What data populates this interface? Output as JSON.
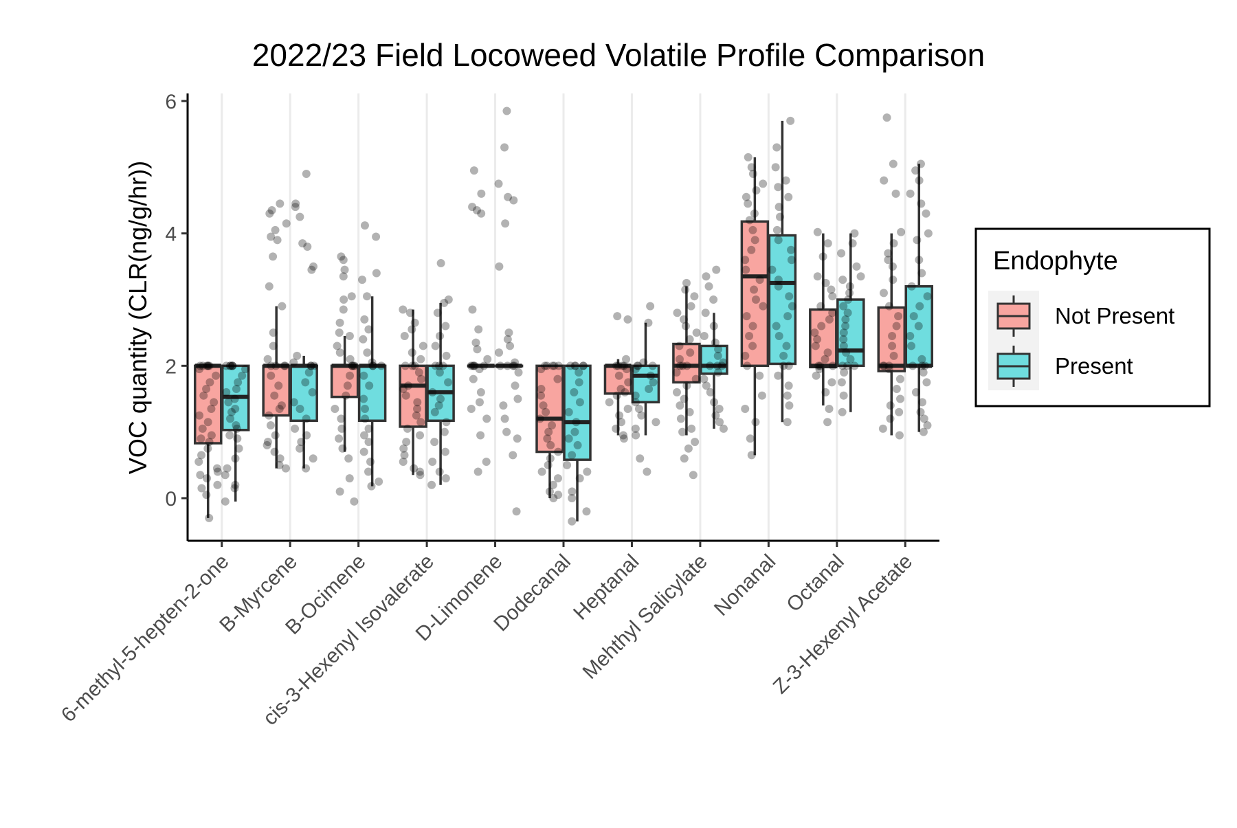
{
  "chart_data": {
    "type": "box",
    "title": "2022/23 Field Locoweed Volatile Profile Comparison",
    "xlabel": "",
    "ylabel": "VOC quantity (CLR(ng/g/hr))",
    "ylim": [
      -0.6,
      6.2
    ],
    "yticks": [
      0,
      2,
      4,
      6
    ],
    "grid": "vertical major lines only",
    "legend": {
      "title": "Endophyte",
      "placement": "right",
      "entries": [
        "Not Present",
        "Present"
      ]
    },
    "colors": {
      "Not Present": "#F8A5A0",
      "Present": "#6FDDDF",
      "points": "#000000",
      "outline": "#333333"
    },
    "categories": [
      "6-methyl-5-hepten-2-one",
      "B-Myrcene",
      "B-Ocimene",
      "cis-3-Hexenyl Isovalerate",
      "D-Limonene",
      "Dodecanal",
      "Heptanal",
      "Mehthyl Salicylate",
      "Nonanal",
      "Octanal",
      "Z-3-Hexenyl Acetate"
    ],
    "series": [
      {
        "name": "Not Present",
        "boxes": [
          {
            "min": -0.3,
            "q1": 0.83,
            "median": 2.0,
            "q3": 2.0,
            "max": 2.0
          },
          {
            "min": 0.45,
            "q1": 1.25,
            "median": 2.0,
            "q3": 2.0,
            "max": 2.9
          },
          {
            "min": 0.7,
            "q1": 1.53,
            "median": 2.0,
            "q3": 2.0,
            "max": 2.45
          },
          {
            "min": 0.35,
            "q1": 1.08,
            "median": 1.7,
            "q3": 2.0,
            "max": 2.85
          },
          {
            "min": 2.0,
            "q1": 2.0,
            "median": 2.0,
            "q3": 2.0,
            "max": 2.0
          },
          {
            "min": 0.0,
            "q1": 0.7,
            "median": 1.2,
            "q3": 2.0,
            "max": 2.0
          },
          {
            "min": 0.95,
            "q1": 1.58,
            "median": 2.0,
            "q3": 2.0,
            "max": 2.1
          },
          {
            "min": 0.95,
            "q1": 1.75,
            "median": 2.0,
            "q3": 2.33,
            "max": 3.2
          },
          {
            "min": 0.65,
            "q1": 2.0,
            "median": 3.35,
            "q3": 4.18,
            "max": 5.15
          },
          {
            "min": 1.4,
            "q1": 1.98,
            "median": 2.0,
            "q3": 2.85,
            "max": 4.0
          },
          {
            "min": 0.95,
            "q1": 1.92,
            "median": 2.0,
            "q3": 2.88,
            "max": 4.0
          }
        ]
      },
      {
        "name": "Present",
        "boxes": [
          {
            "min": -0.05,
            "q1": 1.03,
            "median": 1.53,
            "q3": 2.0,
            "max": 2.0
          },
          {
            "min": 0.45,
            "q1": 1.17,
            "median": 2.0,
            "q3": 2.0,
            "max": 2.15
          },
          {
            "min": 0.18,
            "q1": 1.17,
            "median": 2.0,
            "q3": 2.0,
            "max": 3.05
          },
          {
            "min": 0.2,
            "q1": 1.17,
            "median": 1.6,
            "q3": 2.0,
            "max": 2.95
          },
          {
            "min": 2.0,
            "q1": 2.0,
            "median": 2.0,
            "q3": 2.0,
            "max": 2.0
          },
          {
            "min": -0.35,
            "q1": 0.58,
            "median": 1.15,
            "q3": 2.0,
            "max": 2.0
          },
          {
            "min": 0.95,
            "q1": 1.45,
            "median": 1.85,
            "q3": 2.0,
            "max": 2.65
          },
          {
            "min": 1.05,
            "q1": 1.88,
            "median": 2.0,
            "q3": 2.3,
            "max": 2.8
          },
          {
            "min": 1.15,
            "q1": 2.03,
            "median": 3.25,
            "q3": 3.97,
            "max": 5.7
          },
          {
            "min": 1.3,
            "q1": 2.0,
            "median": 2.23,
            "q3": 3.0,
            "max": 4.0
          },
          {
            "min": 1.0,
            "q1": 2.0,
            "median": 2.0,
            "q3": 3.2,
            "max": 5.05
          }
        ]
      }
    ],
    "points": {
      "Not Present": [
        [
          2,
          2,
          2,
          2,
          2,
          2,
          1.95,
          1.85,
          1.75,
          1.65,
          1.55,
          1.45,
          1.35,
          1.25,
          1.15,
          1.05,
          0.95,
          0.9,
          0.85,
          0.75,
          0.65,
          0.55,
          0.45,
          0.4,
          0.35,
          0.3,
          0.2,
          0.15,
          0.05,
          -0.3
        ],
        [
          4.45,
          4.35,
          4.3,
          4.15,
          4.05,
          3.95,
          3.9,
          3.65,
          3.2,
          2.9,
          2.5,
          2.3,
          2.1,
          2,
          2,
          2,
          2,
          1.85,
          1.7,
          1.55,
          1.4,
          1.35,
          1.25,
          1.1,
          0.95,
          0.85,
          0.8,
          0.7,
          0.6,
          0.5,
          0.45
        ],
        [
          3.65,
          3.6,
          3.45,
          3.35,
          3.05,
          3,
          2.85,
          2.65,
          2.5,
          2.45,
          2.3,
          2.2,
          2.1,
          2,
          2,
          2,
          2,
          1.85,
          1.7,
          1.55,
          1.35,
          1.2,
          1.05,
          0.9,
          0.75,
          0.6,
          0.3,
          0.1,
          -0.05
        ],
        [
          2.85,
          2.8,
          2.65,
          2.55,
          2.45,
          2.3,
          2.2,
          2.1,
          2,
          2,
          2,
          1.9,
          1.8,
          1.7,
          1.65,
          1.55,
          1.45,
          1.35,
          1.25,
          1.15,
          1.05,
          0.95,
          0.85,
          0.75,
          0.65,
          0.55,
          0.45,
          0.4,
          0.35
        ],
        [
          4.95,
          4.6,
          4.4,
          4.35,
          4.3,
          2.85,
          2.55,
          2.35,
          2.25,
          2.1,
          2,
          2,
          2,
          2,
          2,
          1.95,
          1.8,
          1.6,
          1.45,
          1.35,
          1.2,
          0.95,
          0.55,
          0.4
        ],
        [
          2,
          2,
          2,
          2,
          2,
          1.95,
          1.8,
          1.65,
          1.55,
          1.4,
          1.3,
          1.2,
          1.1,
          1,
          0.9,
          0.8,
          0.7,
          0.6,
          0.5,
          0.4,
          0.3,
          0.2,
          0.1,
          0.05,
          0
        ],
        [
          2.75,
          2.7,
          2.1,
          2,
          2,
          2,
          2,
          1.95,
          1.85,
          1.75,
          1.65,
          1.6,
          1.55,
          1.45,
          1.35,
          1.25,
          1.15,
          1.05,
          0.95,
          0.9
        ],
        [
          3.25,
          3.15,
          3.05,
          2.9,
          2.8,
          2.7,
          2.6,
          2.5,
          2.4,
          2.3,
          2.2,
          2.1,
          2,
          2,
          2,
          1.9,
          1.8,
          1.7,
          1.6,
          1.5,
          1.4,
          1.3,
          1.2,
          1.05,
          1,
          0.85,
          0.75,
          0.6,
          0.35
        ],
        [
          5.15,
          5,
          4.9,
          4.75,
          4.65,
          4.55,
          4.45,
          4.3,
          4.2,
          4.05,
          3.9,
          3.75,
          3.6,
          3.45,
          3.3,
          3.15,
          3,
          2.9,
          2.75,
          2.6,
          2.45,
          2.3,
          2.15,
          2,
          1.85,
          1.55,
          1.35,
          1.15,
          0.9,
          0.65
        ],
        [
          4.02,
          3.85,
          3.65,
          3.35,
          3.25,
          3.15,
          3.05,
          2.9,
          2.8,
          2.7,
          2.6,
          2.5,
          2.4,
          2.3,
          2.2,
          2.1,
          2,
          2,
          2,
          1.95,
          1.85,
          1.75,
          1.6,
          1.35,
          1.15
        ],
        [
          5.75,
          5.05,
          4.8,
          4.6,
          4.02,
          3.85,
          3.7,
          3.6,
          3.5,
          3.3,
          3.1,
          2.9,
          2.75,
          2.6,
          2.45,
          2.3,
          2.15,
          2,
          2,
          2,
          1.95,
          1.8,
          1.65,
          1.5,
          1.4,
          1.3,
          1.2,
          1.05,
          0.95
        ]
      ],
      "Present": [
        [
          2,
          2,
          2,
          2,
          2,
          2,
          1.95,
          1.85,
          1.75,
          1.65,
          1.6,
          1.5,
          1.45,
          1.35,
          1.3,
          1.2,
          1.1,
          1.05,
          0.95,
          0.9,
          0.75,
          0.6,
          0.45,
          0.35,
          0.2,
          0.15,
          -0.05
        ],
        [
          4.9,
          4.45,
          4.4,
          4.25,
          3.85,
          3.8,
          3.5,
          3.45,
          2.15,
          2.05,
          2,
          2,
          2,
          1.9,
          1.75,
          1.6,
          1.45,
          1.35,
          1.2,
          1.05,
          0.95,
          0.85,
          0.75,
          0.6,
          0.45
        ],
        [
          4.12,
          3.95,
          3.4,
          3.3,
          3.05,
          2.7,
          2.55,
          2.4,
          2.2,
          2.05,
          2,
          2,
          2,
          1.85,
          1.7,
          1.5,
          1.35,
          1.2,
          1.05,
          0.95,
          0.85,
          0.7,
          0.55,
          0.4,
          0.25,
          0.18
        ],
        [
          3.55,
          3,
          2.95,
          2.8,
          2.6,
          2.45,
          2.3,
          2.15,
          2,
          2,
          2,
          1.9,
          1.75,
          1.6,
          1.5,
          1.4,
          1.3,
          1.15,
          1,
          0.85,
          0.7,
          0.55,
          0.4,
          0.3,
          0.2
        ],
        [
          5.85,
          5.3,
          4.75,
          4.55,
          4.5,
          4.15,
          3.5,
          2.5,
          2.4,
          2.3,
          2.2,
          2.05,
          2,
          2,
          2,
          2,
          1.9,
          1.7,
          1.5,
          1.4,
          1.2,
          1,
          0.9,
          0.65,
          -0.2
        ],
        [
          2,
          2,
          2,
          2,
          2,
          1.9,
          1.75,
          1.6,
          1.45,
          1.3,
          1.15,
          1,
          0.9,
          0.8,
          0.65,
          0.5,
          0.4,
          0.3,
          0.1,
          0,
          -0.2,
          -0.35
        ],
        [
          2.9,
          2.65,
          2.05,
          2,
          2,
          2,
          1.95,
          1.85,
          1.75,
          1.65,
          1.55,
          1.45,
          1.35,
          1.25,
          1.15,
          1.05,
          0.95,
          0.6,
          0.4
        ],
        [
          3.45,
          3.35,
          3.2,
          3,
          2.8,
          2.6,
          2.45,
          2.35,
          2.25,
          2.15,
          2.05,
          2,
          2,
          2,
          1.9,
          1.8,
          1.7,
          1.6,
          1.45,
          1.35,
          1.25,
          1.15,
          1.05
        ],
        [
          5.7,
          5.3,
          5,
          4.8,
          4.7,
          4.55,
          4.4,
          4.25,
          4.05,
          3.9,
          3.75,
          3.6,
          3.45,
          3.3,
          3.2,
          3.05,
          2.9,
          2.75,
          2.6,
          2.45,
          2.3,
          2.15,
          2,
          2,
          1.85,
          1.7,
          1.55,
          1.4,
          1.15
        ],
        [
          4,
          3.85,
          3.7,
          3.5,
          3.35,
          3.3,
          3.2,
          3.1,
          3,
          2.9,
          2.8,
          2.7,
          2.6,
          2.5,
          2.4,
          2.3,
          2.2,
          2.1,
          2,
          2,
          2,
          1.9,
          1.75,
          1.55,
          1.3
        ],
        [
          5.05,
          4.95,
          4.8,
          4.6,
          4.45,
          4.3,
          4,
          3.9,
          3.6,
          3.4,
          3.2,
          3.05,
          2.9,
          2.75,
          2.6,
          2.45,
          2.3,
          2.1,
          2,
          2,
          2,
          1.9,
          1.75,
          1.6,
          1.45,
          1.3,
          1.2,
          1.1,
          1
        ]
      ]
    }
  }
}
